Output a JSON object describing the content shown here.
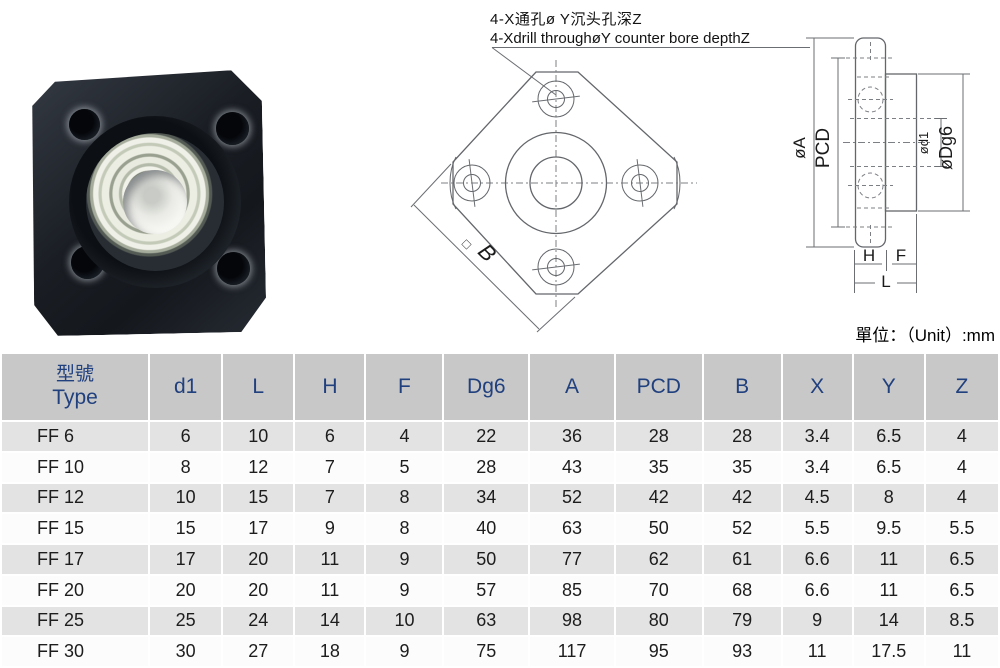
{
  "annotation": {
    "line1": "4-X通孔ø Y沉头孔深Z",
    "line2": "4-Xdrill throughøY counter bore depthZ"
  },
  "unit_label": "單位：（Unit）:mm",
  "front_view": {
    "square_symbol": "□",
    "b_label": "B"
  },
  "side_view": {
    "dia_a": "øA",
    "pcd": "PCD",
    "dia_d1": "ød1",
    "dia_dg6": "øDg6",
    "h": "H",
    "f": "F",
    "l": "L"
  },
  "table": {
    "header": {
      "type_zh": "型號",
      "type_en": "Type",
      "cols": [
        "d1",
        "L",
        "H",
        "F",
        "Dg6",
        "A",
        "PCD",
        "B",
        "X",
        "Y",
        "Z"
      ]
    },
    "rows": [
      {
        "type_prefix": "FF",
        "type_size": "6",
        "values": [
          "6",
          "10",
          "6",
          "4",
          "22",
          "36",
          "28",
          "28",
          "3.4",
          "6.5",
          "4"
        ]
      },
      {
        "type_prefix": "FF",
        "type_size": "10",
        "values": [
          "8",
          "12",
          "7",
          "5",
          "28",
          "43",
          "35",
          "35",
          "3.4",
          "6.5",
          "4"
        ]
      },
      {
        "type_prefix": "FF",
        "type_size": "12",
        "values": [
          "10",
          "15",
          "7",
          "8",
          "34",
          "52",
          "42",
          "42",
          "4.5",
          "8",
          "4"
        ]
      },
      {
        "type_prefix": "FF",
        "type_size": "15",
        "values": [
          "15",
          "17",
          "9",
          "8",
          "40",
          "63",
          "50",
          "52",
          "5.5",
          "9.5",
          "5.5"
        ]
      },
      {
        "type_prefix": "FF",
        "type_size": "17",
        "values": [
          "17",
          "20",
          "11",
          "9",
          "50",
          "77",
          "62",
          "61",
          "6.6",
          "11",
          "6.5"
        ]
      },
      {
        "type_prefix": "FF",
        "type_size": "20",
        "values": [
          "20",
          "20",
          "11",
          "9",
          "57",
          "85",
          "70",
          "68",
          "6.6",
          "11",
          "6.5"
        ]
      },
      {
        "type_prefix": "FF",
        "type_size": "25",
        "values": [
          "25",
          "24",
          "14",
          "10",
          "63",
          "98",
          "80",
          "79",
          "9",
          "14",
          "8.5"
        ]
      },
      {
        "type_prefix": "FF",
        "type_size": "30",
        "values": [
          "30",
          "27",
          "18",
          "9",
          "75",
          "117",
          "95",
          "93",
          "11",
          "17.5",
          "11"
        ]
      }
    ],
    "colors": {
      "header_bg": "#c8c8c8",
      "header_text": "#21407e",
      "row_stripe_bg": "#e3e3e3",
      "row_plain_bg": "#fcfcfc"
    }
  }
}
